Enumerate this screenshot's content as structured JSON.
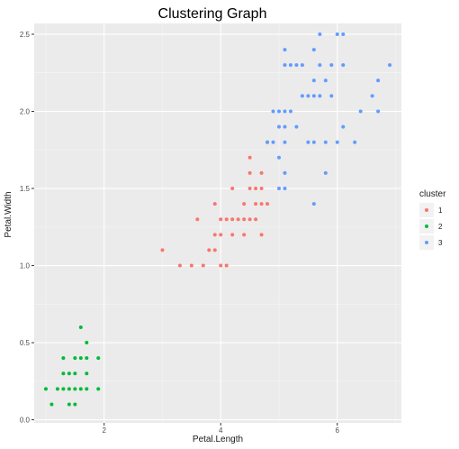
{
  "chart_data": {
    "type": "scatter",
    "title": "Clustering Graph",
    "xlabel": "Petal.Length",
    "ylabel": "Petal.Width",
    "xlim": [
      0.8,
      7.1
    ],
    "ylim": [
      -0.02,
      2.57
    ],
    "x_ticks": [
      2,
      4,
      6
    ],
    "y_ticks": [
      0.0,
      0.5,
      1.0,
      1.5,
      2.0,
      2.5
    ],
    "y_tick_labels": [
      "0.0",
      "0.5",
      "1.0",
      "1.5",
      "2.0",
      "2.5"
    ],
    "grid": true,
    "legend": {
      "title": "cluster",
      "position": "right"
    },
    "series": [
      {
        "name": "1",
        "color": "#F8766D",
        "points": [
          [
            3.0,
            1.1
          ],
          [
            3.3,
            1.0
          ],
          [
            3.5,
            1.0
          ],
          [
            3.6,
            1.3
          ],
          [
            3.7,
            1.0
          ],
          [
            3.8,
            1.1
          ],
          [
            3.9,
            1.1
          ],
          [
            3.9,
            1.2
          ],
          [
            3.9,
            1.4
          ],
          [
            4.0,
            1.0
          ],
          [
            4.0,
            1.2
          ],
          [
            4.0,
            1.3
          ],
          [
            4.1,
            1.0
          ],
          [
            4.1,
            1.3
          ],
          [
            4.2,
            1.2
          ],
          [
            4.2,
            1.3
          ],
          [
            4.2,
            1.5
          ],
          [
            4.3,
            1.3
          ],
          [
            4.4,
            1.2
          ],
          [
            4.4,
            1.3
          ],
          [
            4.4,
            1.4
          ],
          [
            4.5,
            1.3
          ],
          [
            4.5,
            1.5
          ],
          [
            4.5,
            1.6
          ],
          [
            4.5,
            1.7
          ],
          [
            4.6,
            1.3
          ],
          [
            4.6,
            1.4
          ],
          [
            4.6,
            1.5
          ],
          [
            4.7,
            1.2
          ],
          [
            4.7,
            1.4
          ],
          [
            4.7,
            1.5
          ],
          [
            4.7,
            1.6
          ],
          [
            4.8,
            1.4
          ],
          [
            4.8,
            1.8
          ]
        ]
      },
      {
        "name": "2",
        "color": "#00BA38",
        "points": [
          [
            1.0,
            0.2
          ],
          [
            1.1,
            0.1
          ],
          [
            1.2,
            0.2
          ],
          [
            1.3,
            0.2
          ],
          [
            1.3,
            0.3
          ],
          [
            1.3,
            0.4
          ],
          [
            1.4,
            0.1
          ],
          [
            1.4,
            0.2
          ],
          [
            1.4,
            0.3
          ],
          [
            1.5,
            0.1
          ],
          [
            1.5,
            0.2
          ],
          [
            1.5,
            0.3
          ],
          [
            1.5,
            0.4
          ],
          [
            1.6,
            0.2
          ],
          [
            1.6,
            0.4
          ],
          [
            1.6,
            0.6
          ],
          [
            1.7,
            0.2
          ],
          [
            1.7,
            0.3
          ],
          [
            1.7,
            0.4
          ],
          [
            1.7,
            0.5
          ],
          [
            1.9,
            0.2
          ],
          [
            1.9,
            0.4
          ]
        ]
      },
      {
        "name": "3",
        "color": "#619CFF",
        "points": [
          [
            4.8,
            1.8
          ],
          [
            4.9,
            1.8
          ],
          [
            4.9,
            2.0
          ],
          [
            5.0,
            1.5
          ],
          [
            5.0,
            1.7
          ],
          [
            5.0,
            1.9
          ],
          [
            5.0,
            2.0
          ],
          [
            5.1,
            1.5
          ],
          [
            5.1,
            1.6
          ],
          [
            5.1,
            1.8
          ],
          [
            5.1,
            1.9
          ],
          [
            5.1,
            2.0
          ],
          [
            5.1,
            2.3
          ],
          [
            5.1,
            2.4
          ],
          [
            5.2,
            2.0
          ],
          [
            5.2,
            2.3
          ],
          [
            5.3,
            1.9
          ],
          [
            5.3,
            2.3
          ],
          [
            5.4,
            2.1
          ],
          [
            5.4,
            2.3
          ],
          [
            5.5,
            1.8
          ],
          [
            5.5,
            2.1
          ],
          [
            5.6,
            1.4
          ],
          [
            5.6,
            1.8
          ],
          [
            5.6,
            2.1
          ],
          [
            5.6,
            2.2
          ],
          [
            5.6,
            2.4
          ],
          [
            5.7,
            2.1
          ],
          [
            5.7,
            2.3
          ],
          [
            5.7,
            2.5
          ],
          [
            5.8,
            1.6
          ],
          [
            5.8,
            1.8
          ],
          [
            5.8,
            2.2
          ],
          [
            5.9,
            2.1
          ],
          [
            5.9,
            2.3
          ],
          [
            6.0,
            1.8
          ],
          [
            6.0,
            2.5
          ],
          [
            6.1,
            1.9
          ],
          [
            6.1,
            2.3
          ],
          [
            6.1,
            2.5
          ],
          [
            6.3,
            1.8
          ],
          [
            6.4,
            2.0
          ],
          [
            6.6,
            2.1
          ],
          [
            6.7,
            2.0
          ],
          [
            6.7,
            2.2
          ],
          [
            6.9,
            2.3
          ]
        ]
      }
    ]
  }
}
